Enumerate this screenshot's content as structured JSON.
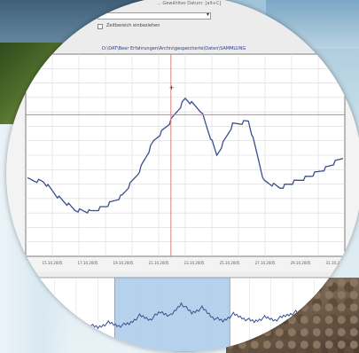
{
  "window": {
    "title": "... Gewähltes Datum: [alt+C]"
  },
  "controls": {
    "selector_value": "",
    "checkbox_label": "Zeitbereich einbeziehen"
  },
  "chart_data": [
    {
      "type": "line",
      "title": "D:\\DAT\\Beer Erfahrungen\\Archiv\\gespeicherte\\Daten\\SAMMLUNG",
      "xlabel": "",
      "ylabel": "",
      "x_tick_labels": [
        "15.10.2005",
        "17.10.2005",
        "19.10.2005",
        "21.10.2005",
        "23.10.2005",
        "25.10.2005",
        "27.10.2005",
        "29.10.2005",
        "31.10.2005"
      ],
      "grid": true,
      "crosshair": {
        "x": "22.10.2005",
        "y": 0.7,
        "color": "#d98080"
      },
      "series": [
        {
          "color": "#3a4e8e",
          "x": [
            "14.10.2005",
            "15.10.2005",
            "16.10.2005",
            "17.10.2005",
            "18.10.2005",
            "19.10.2005",
            "20.10.2005",
            "21.10.2005",
            "22.10.2005",
            "22.5.10.2005",
            "23.10.2005",
            "24.10.2005",
            "25.10.2005",
            "25.5.10.2005",
            "26.10.2005",
            "27.10.2005",
            "28.10.2005",
            "29.10.2005",
            "30.10.2005",
            "31.10.2005",
            "1.11.2005"
          ],
          "values": [
            0.38,
            0.37,
            0.29,
            0.23,
            0.22,
            0.25,
            0.3,
            0.41,
            0.57,
            0.66,
            0.78,
            0.72,
            0.5,
            0.65,
            0.67,
            0.37,
            0.34,
            0.37,
            0.4,
            0.44,
            0.49
          ]
        }
      ]
    },
    {
      "type": "line",
      "title": "",
      "grid": true,
      "selection_range": [
        "20.10.2005",
        "26.10.2005"
      ],
      "series": [
        {
          "color": "#3a4e8e",
          "values": [
            0.35,
            0.38,
            0.33,
            0.42,
            0.36,
            0.4,
            0.55,
            0.48,
            0.62,
            0.55,
            0.78,
            0.6,
            0.7,
            0.52,
            0.45,
            0.58,
            0.5,
            0.44,
            0.52,
            0.47,
            0.55,
            0.62,
            0.48,
            0.85,
            0.5
          ]
        }
      ]
    }
  ]
}
